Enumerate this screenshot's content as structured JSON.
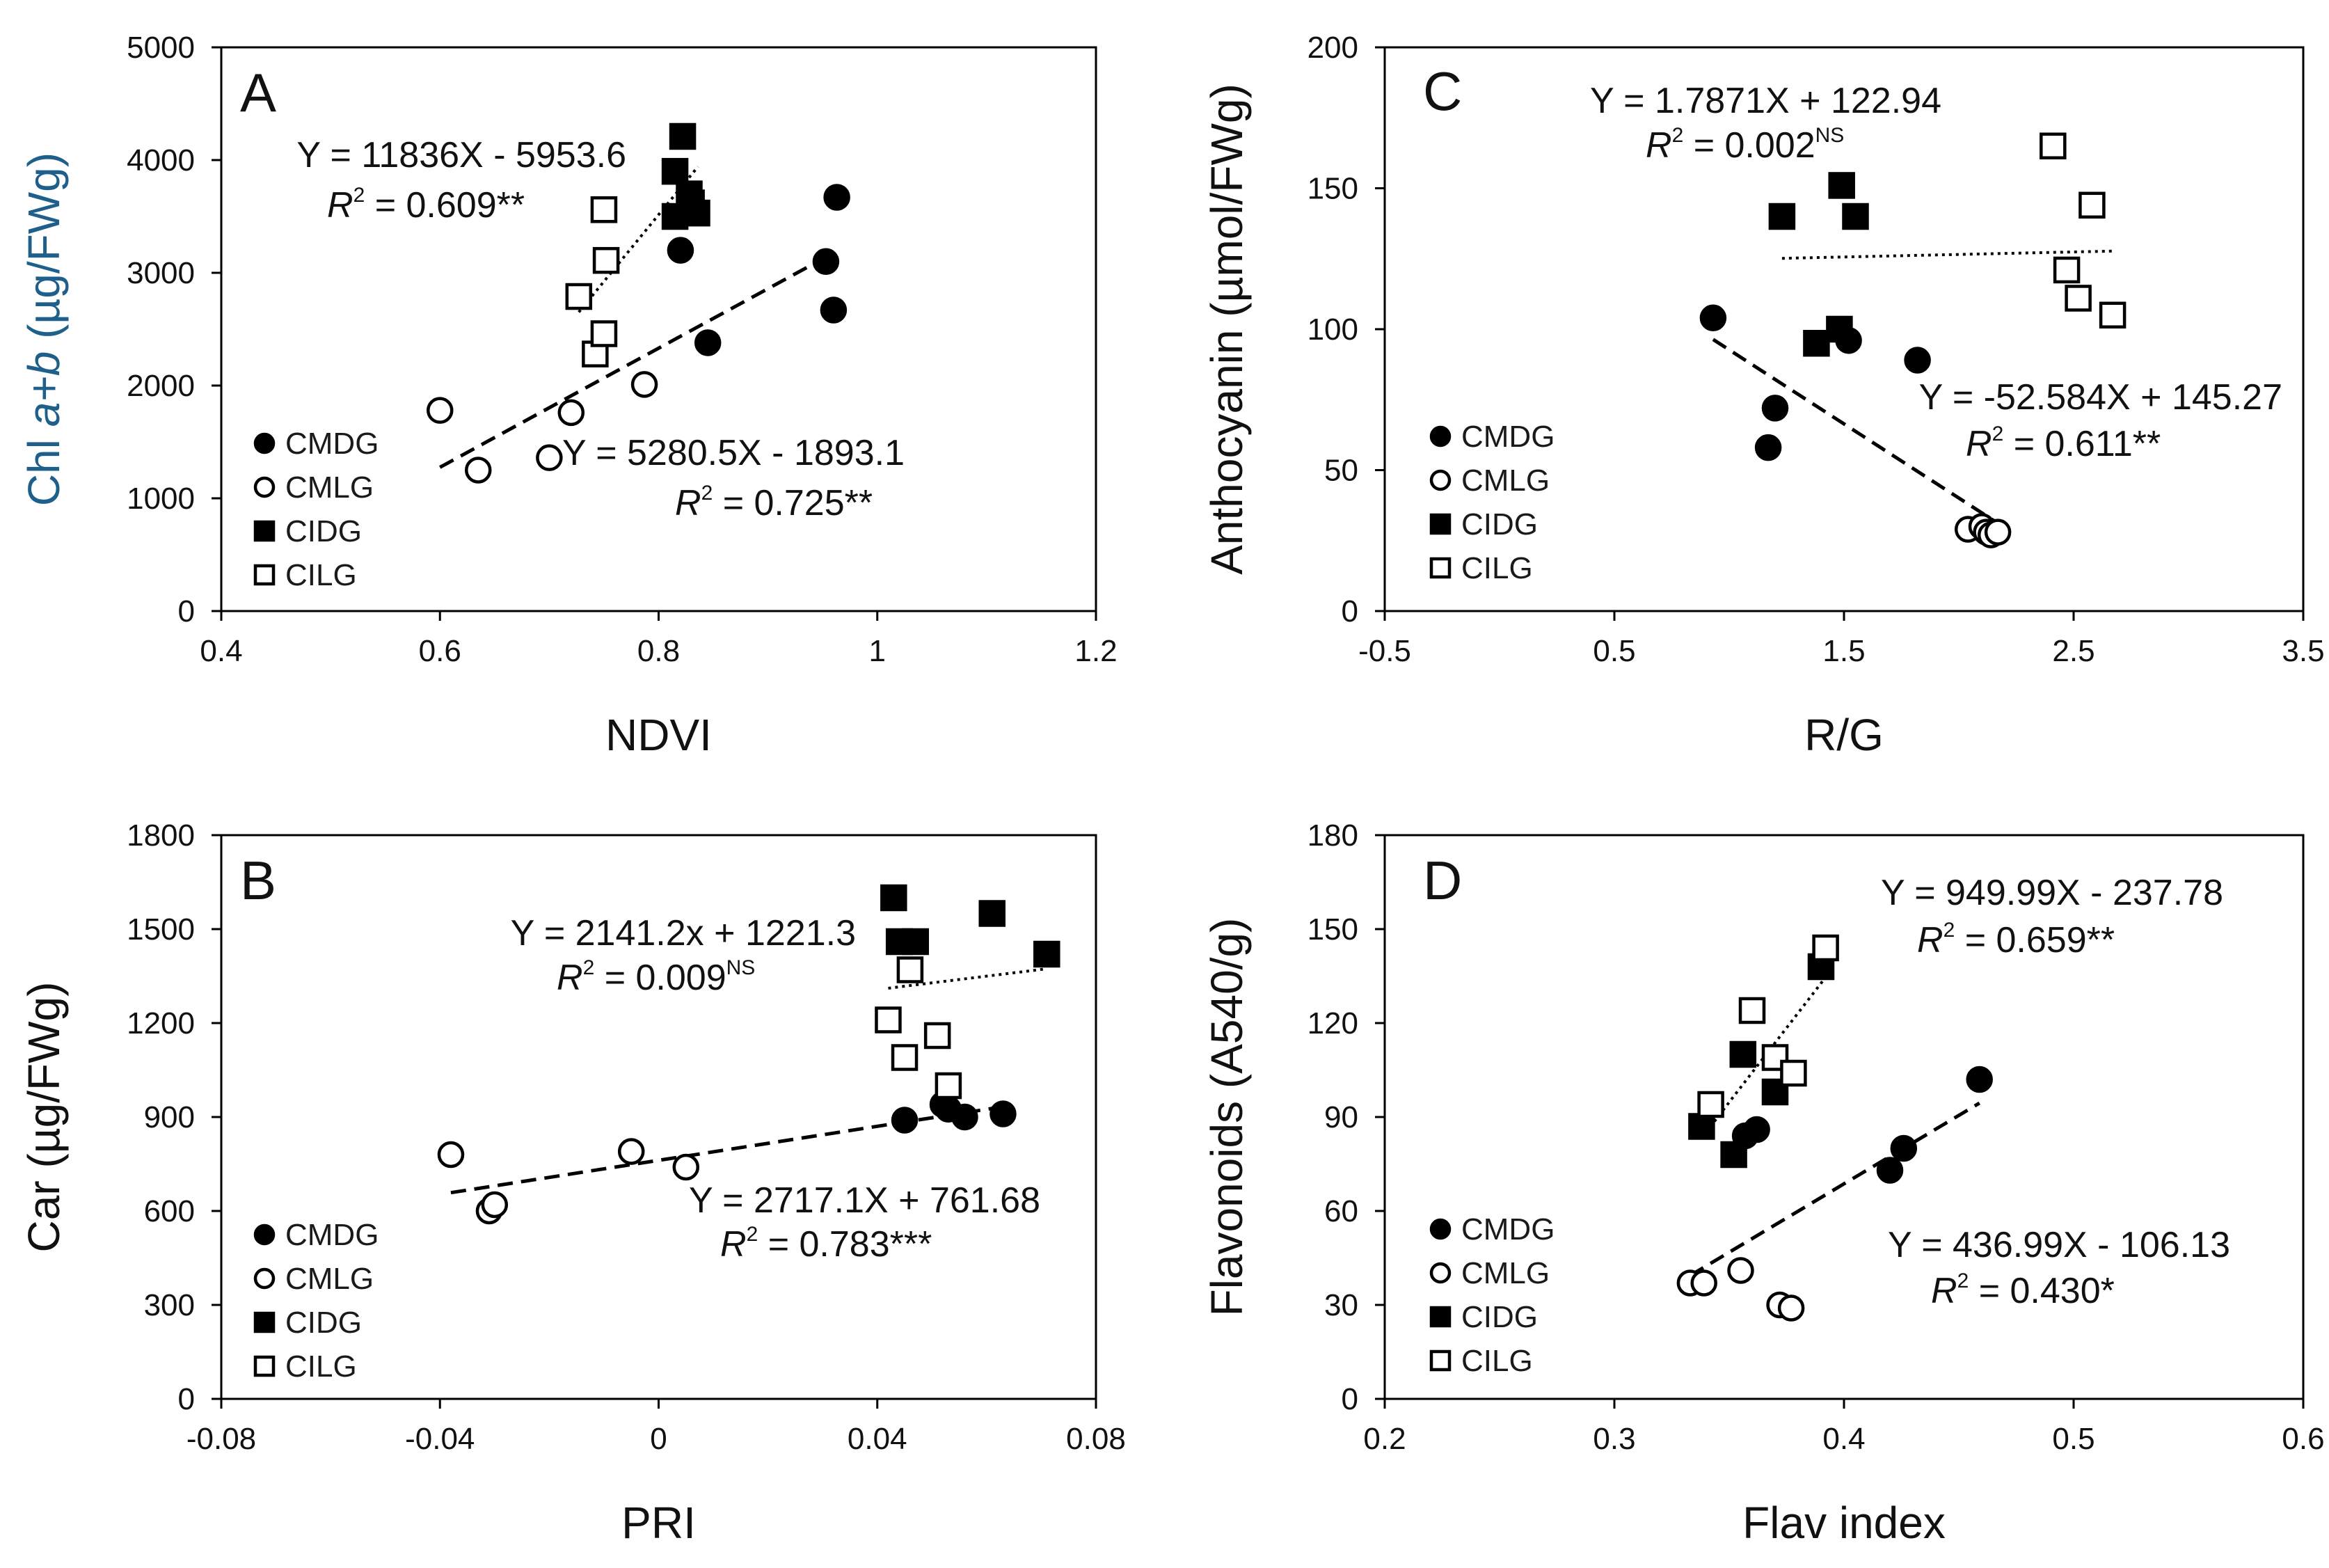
{
  "figure": {
    "colors": {
      "CMDG": "#000000",
      "CMLG": "#ffffff",
      "CIDG": "#000000",
      "CILG": "#ffffff",
      "ylabel_accent": "#1f5f8b",
      "frame": "#000000"
    }
  },
  "chart_data": [
    {
      "panel": "A",
      "type": "scatter",
      "xlabel": "NDVI",
      "ylabel_parts": [
        "Chl ",
        "a+b",
        " (µg/FWg)"
      ],
      "xlim": [
        0.4,
        1.2
      ],
      "ylim": [
        0,
        5000
      ],
      "xticks": [
        0.4,
        0.6,
        0.8,
        1,
        1.2
      ],
      "xtick_labels": [
        "0.4",
        "0.6",
        "0.8",
        "1",
        "1.2"
      ],
      "yticks": [
        0,
        1000,
        2000,
        3000,
        4000,
        5000
      ],
      "ytick_labels": [
        "0",
        "1000",
        "2000",
        "3000",
        "4000",
        "5000"
      ],
      "legend": [
        "CMDG",
        "CMLG",
        "CIDG",
        "CILG"
      ],
      "series": [
        {
          "name": "CMDG",
          "marker": "filled-circle",
          "points": [
            [
              0.82,
              3200
            ],
            [
              0.845,
              2380
            ],
            [
              0.953,
              3100
            ],
            [
              0.96,
              2670
            ],
            [
              0.963,
              3670
            ]
          ]
        },
        {
          "name": "CMLG",
          "marker": "open-circle",
          "points": [
            [
              0.6,
              1780
            ],
            [
              0.635,
              1250
            ],
            [
              0.7,
              1360
            ],
            [
              0.72,
              1760
            ],
            [
              0.787,
              2010
            ]
          ]
        },
        {
          "name": "CIDG",
          "marker": "filled-square",
          "points": [
            [
              0.815,
              3900
            ],
            [
              0.815,
              3500
            ],
            [
              0.822,
              4210
            ],
            [
              0.828,
              3700
            ],
            [
              0.83,
              3620
            ],
            [
              0.835,
              3530
            ]
          ]
        },
        {
          "name": "CILG",
          "marker": "open-square",
          "points": [
            [
              0.727,
              2790
            ],
            [
              0.742,
              2280
            ],
            [
              0.75,
              2460
            ],
            [
              0.75,
              3560
            ],
            [
              0.752,
              3110
            ]
          ]
        }
      ],
      "fits": [
        {
          "group": "CMDG+CMLG",
          "style": "dashed",
          "equation": "Y = 5280.5X - 1893.1",
          "r2_value": "= 0.725**",
          "r2_suffix": "",
          "x_range": [
            0.6,
            0.955
          ],
          "slope": 5280.5,
          "intercept": -1893.1
        },
        {
          "group": "CIDG+CILG",
          "style": "dotted",
          "equation": "Y = 11836X - 5953.6",
          "r2_value": "= 0.609**",
          "r2_suffix": "",
          "x_range": [
            0.727,
            0.836
          ],
          "slope": 11836,
          "intercept": -5953.6
        }
      ]
    },
    {
      "panel": "B",
      "type": "scatter",
      "xlabel": "PRI",
      "ylabel_parts": [
        "Car (µg/FWg)"
      ],
      "xlim": [
        -0.08,
        0.08
      ],
      "ylim": [
        0,
        1800
      ],
      "xticks": [
        -0.08,
        -0.04,
        0,
        0.04,
        0.08
      ],
      "xtick_labels": [
        "-0.08",
        "-0.04",
        "0",
        "0.04",
        "0.08"
      ],
      "yticks": [
        0,
        300,
        600,
        900,
        1200,
        1500,
        1800
      ],
      "ytick_labels": [
        "0",
        "300",
        "600",
        "900",
        "1200",
        "1500",
        "1800"
      ],
      "legend": [
        "CMDG",
        "CMLG",
        "CIDG",
        "CILG"
      ],
      "series": [
        {
          "name": "CMDG",
          "marker": "filled-circle",
          "points": [
            [
              0.045,
              890
            ],
            [
              0.052,
              940
            ],
            [
              0.053,
              925
            ],
            [
              0.056,
              900
            ],
            [
              0.063,
              910
            ]
          ]
        },
        {
          "name": "CMLG",
          "marker": "open-circle",
          "points": [
            [
              -0.038,
              780
            ],
            [
              -0.031,
              600
            ],
            [
              -0.03,
              620
            ],
            [
              -0.005,
              790
            ],
            [
              0.005,
              740
            ]
          ]
        },
        {
          "name": "CIDG",
          "marker": "filled-square",
          "points": [
            [
              0.043,
              1600
            ],
            [
              0.044,
              1460
            ],
            [
              0.047,
              1460
            ],
            [
              0.061,
              1550
            ],
            [
              0.071,
              1420
            ]
          ]
        },
        {
          "name": "CILG",
          "marker": "open-square",
          "points": [
            [
              0.042,
              1210
            ],
            [
              0.045,
              1090
            ],
            [
              0.046,
              1370
            ],
            [
              0.051,
              1160
            ],
            [
              0.053,
              1000
            ]
          ]
        }
      ],
      "fits": [
        {
          "group": "CMDG+CMLG",
          "style": "dashed",
          "equation": "Y = 2717.1X + 761.68",
          "r2_value": "= 0.783***",
          "r2_suffix": "",
          "x_range": [
            -0.038,
            0.063
          ],
          "slope": 2717.1,
          "intercept": 761.68
        },
        {
          "group": "CIDG+CILG",
          "style": "dotted",
          "equation": "Y = 2141.2x + 1221.3",
          "r2_value": "= 0.009",
          "r2_suffix": "NS",
          "x_range": [
            0.042,
            0.071
          ],
          "slope": 2141.2,
          "intercept": 1221.3
        }
      ]
    },
    {
      "panel": "C",
      "type": "scatter",
      "xlabel": "R/G",
      "ylabel_parts": [
        "Anthocyanin (µmol/FWg)"
      ],
      "xlim": [
        -0.5,
        3.5
      ],
      "ylim": [
        0,
        200
      ],
      "xticks": [
        -0.5,
        0.5,
        1.5,
        2.5,
        3.5
      ],
      "xtick_labels": [
        "-0.5",
        "0.5",
        "1.5",
        "2.5",
        "3.5"
      ],
      "yticks": [
        0,
        50,
        100,
        150,
        200
      ],
      "ytick_labels": [
        "0",
        "50",
        "100",
        "150",
        "200"
      ],
      "legend": [
        "CMDG",
        "CMLG",
        "CIDG",
        "CILG"
      ],
      "series": [
        {
          "name": "CMDG",
          "marker": "filled-circle",
          "points": [
            [
              0.93,
              104
            ],
            [
              1.17,
              58
            ],
            [
              1.2,
              72
            ],
            [
              1.52,
              96
            ],
            [
              1.82,
              89
            ]
          ]
        },
        {
          "name": "CMLG",
          "marker": "open-circle",
          "points": [
            [
              2.04,
              29
            ],
            [
              2.1,
              30
            ],
            [
              2.12,
              28
            ],
            [
              2.14,
              27
            ],
            [
              2.17,
              28
            ]
          ]
        },
        {
          "name": "CIDG",
          "marker": "filled-square",
          "points": [
            [
              1.23,
              140
            ],
            [
              1.38,
              95
            ],
            [
              1.48,
              100
            ],
            [
              1.49,
              151
            ],
            [
              1.55,
              140
            ]
          ]
        },
        {
          "name": "CILG",
          "marker": "open-square",
          "points": [
            [
              2.41,
              165
            ],
            [
              2.47,
              121
            ],
            [
              2.52,
              111
            ],
            [
              2.58,
              144
            ],
            [
              2.67,
              105
            ]
          ]
        }
      ],
      "fits": [
        {
          "group": "CMDG+CMLG",
          "style": "dashed",
          "equation": "Y = -52.584X + 145.27",
          "r2_value": "= 0.611**",
          "r2_suffix": "",
          "x_range": [
            0.93,
            2.17
          ],
          "slope": -52.584,
          "intercept": 145.27
        },
        {
          "group": "CIDG+CILG",
          "style": "dotted",
          "equation": "Y = 1.7871X + 122.94",
          "r2_value": "= 0.002",
          "r2_suffix": "NS",
          "x_range": [
            1.23,
            2.67
          ],
          "slope": 1.7871,
          "intercept": 122.94
        }
      ]
    },
    {
      "panel": "D",
      "type": "scatter",
      "xlabel": "Flav index",
      "ylabel_parts": [
        "Flavonoids (A540/g)"
      ],
      "xlim": [
        0.2,
        0.6
      ],
      "ylim": [
        0,
        180
      ],
      "xticks": [
        0.2,
        0.3,
        0.4,
        0.5,
        0.6
      ],
      "xtick_labels": [
        "0.2",
        "0.3",
        "0.4",
        "0.5",
        "0.6"
      ],
      "yticks": [
        0,
        30,
        60,
        90,
        120,
        150,
        180
      ],
      "ytick_labels": [
        "0",
        "30",
        "60",
        "90",
        "120",
        "150",
        "180"
      ],
      "legend": [
        "CMDG",
        "CMLG",
        "CIDG",
        "CILG"
      ],
      "series": [
        {
          "name": "CMDG",
          "marker": "filled-circle",
          "points": [
            [
              0.357,
              84
            ],
            [
              0.362,
              86
            ],
            [
              0.42,
              73
            ],
            [
              0.426,
              80
            ],
            [
              0.459,
              102
            ]
          ]
        },
        {
          "name": "CMLG",
          "marker": "open-circle",
          "points": [
            [
              0.333,
              37
            ],
            [
              0.339,
              37
            ],
            [
              0.355,
              41
            ],
            [
              0.372,
              30
            ],
            [
              0.377,
              29
            ]
          ]
        },
        {
          "name": "CIDG",
          "marker": "filled-square",
          "points": [
            [
              0.338,
              87
            ],
            [
              0.352,
              78
            ],
            [
              0.356,
              110
            ],
            [
              0.37,
              98
            ],
            [
              0.39,
              138
            ]
          ]
        },
        {
          "name": "CILG",
          "marker": "open-square",
          "points": [
            [
              0.342,
              94
            ],
            [
              0.36,
              124
            ],
            [
              0.37,
              109
            ],
            [
              0.378,
              104
            ],
            [
              0.392,
              144
            ]
          ]
        }
      ],
      "fits": [
        {
          "group": "CMDG+CMLG",
          "style": "dashed",
          "equation": "Y = 436.99X - 106.13",
          "r2_value": "= 0.430*",
          "r2_suffix": "",
          "x_range": [
            0.333,
            0.459
          ],
          "slope": 436.99,
          "intercept": -106.13
        },
        {
          "group": "CIDG+CILG",
          "style": "dotted",
          "equation": "Y = 949.99X - 237.78",
          "r2_value": "= 0.659**",
          "r2_suffix": "",
          "x_range": [
            0.338,
            0.392
          ],
          "slope": 949.99,
          "intercept": -237.78
        }
      ]
    }
  ]
}
